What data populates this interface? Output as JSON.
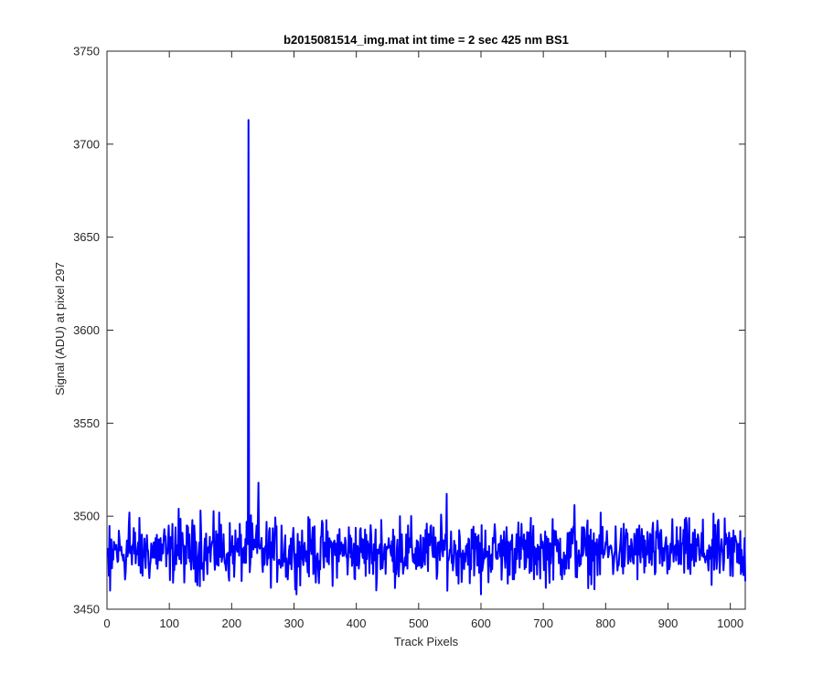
{
  "chart_data": {
    "type": "line",
    "title": "b2015081514_img.mat int time = 2 sec  425 nm BS1",
    "xlabel": "Track Pixels",
    "ylabel": "Signal (ADU) at pixel 297",
    "xlim": [
      0,
      1024
    ],
    "ylim": [
      3450,
      3750
    ],
    "xticks": [
      0,
      100,
      200,
      300,
      400,
      500,
      600,
      700,
      800,
      900,
      1000
    ],
    "yticks": [
      3450,
      3500,
      3550,
      3600,
      3650,
      3700,
      3750
    ],
    "xtick_labels": [
      "0",
      "100",
      "200",
      "300",
      "400",
      "500",
      "600",
      "700",
      "800",
      "900",
      "1000"
    ],
    "ytick_labels": [
      "3450",
      "3500",
      "3550",
      "3600",
      "3650",
      "3700",
      "3750"
    ],
    "grid": false,
    "legend": "none",
    "line_color": "#0000ff",
    "axis_color": "#262626",
    "series": [
      {
        "noise_baseline": 3481,
        "noise_amplitude": 18,
        "x_start": 1,
        "x_end": 1024,
        "points": [
          [
            1,
            3478
          ],
          [
            3,
            3468
          ],
          [
            5,
            3460
          ],
          [
            8,
            3472
          ],
          [
            12,
            3485
          ],
          [
            16,
            3479
          ],
          [
            20,
            3488
          ],
          [
            30,
            3470
          ],
          [
            35,
            3495
          ],
          [
            36,
            3502
          ],
          [
            40,
            3474
          ],
          [
            50,
            3486
          ],
          [
            57,
            3468
          ],
          [
            60,
            3488
          ],
          [
            70,
            3476
          ],
          [
            80,
            3490
          ],
          [
            95,
            3473
          ],
          [
            100,
            3484
          ],
          [
            110,
            3494
          ],
          [
            115,
            3504
          ],
          [
            125,
            3478
          ],
          [
            140,
            3495
          ],
          [
            150,
            3503
          ],
          [
            160,
            3477
          ],
          [
            175,
            3492
          ],
          [
            180,
            3502
          ],
          [
            190,
            3474
          ],
          [
            200,
            3481
          ],
          [
            210,
            3488
          ],
          [
            218,
            3475
          ],
          [
            224,
            3497
          ],
          [
            226,
            3485
          ],
          [
            227,
            3713
          ],
          [
            228,
            3490
          ],
          [
            230,
            3475
          ],
          [
            240,
            3495
          ],
          [
            243,
            3518
          ],
          [
            246,
            3483
          ],
          [
            250,
            3470
          ],
          [
            280,
            3495
          ],
          [
            290,
            3466
          ],
          [
            300,
            3485
          ],
          [
            330,
            3494
          ],
          [
            340,
            3464
          ],
          [
            350,
            3480
          ],
          [
            370,
            3490
          ],
          [
            400,
            3476
          ],
          [
            420,
            3485
          ],
          [
            440,
            3498
          ],
          [
            460,
            3470
          ],
          [
            470,
            3500
          ],
          [
            500,
            3478
          ],
          [
            520,
            3495
          ],
          [
            540,
            3487
          ],
          [
            545,
            3512
          ],
          [
            560,
            3474
          ],
          [
            580,
            3488
          ],
          [
            600,
            3458
          ],
          [
            610,
            3481
          ],
          [
            650,
            3490
          ],
          [
            700,
            3481
          ],
          [
            720,
            3492
          ],
          [
            750,
            3506
          ],
          [
            780,
            3476
          ],
          [
            800,
            3486
          ],
          [
            830,
            3473
          ],
          [
            850,
            3493
          ],
          [
            880,
            3470
          ],
          [
            900,
            3484
          ],
          [
            930,
            3496
          ],
          [
            950,
            3480
          ],
          [
            970,
            3463
          ],
          [
            990,
            3476
          ],
          [
            1000,
            3468
          ],
          [
            1010,
            3486
          ],
          [
            1020,
            3478
          ],
          [
            1024,
            3465
          ]
        ]
      }
    ]
  }
}
